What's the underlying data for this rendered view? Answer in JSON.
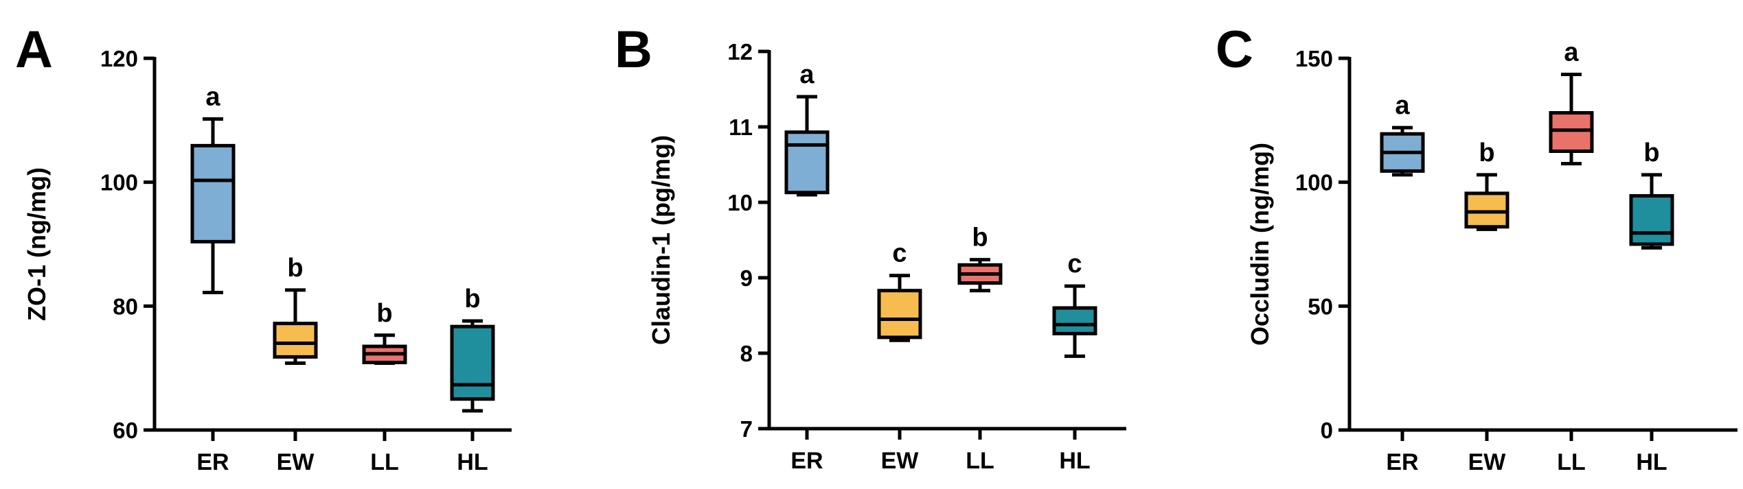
{
  "chart_data": [
    {
      "type": "box",
      "panel_label": "A",
      "ylabel": "ZO-1 (ng/mg)",
      "ylim": [
        60,
        120
      ],
      "yticks": [
        60,
        80,
        100,
        120
      ],
      "categories": [
        "ER",
        "EW",
        "LL",
        "HL"
      ],
      "boxes": [
        {
          "min": 82.2,
          "q1": 90.4,
          "median": 100.3,
          "q3": 105.9,
          "max": 110.2
        },
        {
          "min": 70.8,
          "q1": 71.8,
          "median": 74.0,
          "q3": 77.2,
          "max": 82.6
        },
        {
          "min": 70.8,
          "q1": 70.9,
          "median": 72.3,
          "q3": 73.5,
          "max": 75.3
        },
        {
          "min": 63.1,
          "q1": 65.0,
          "median": 67.3,
          "q3": 76.7,
          "max": 77.6
        }
      ],
      "significance": [
        "a",
        "b",
        "b",
        "b"
      ]
    },
    {
      "type": "box",
      "panel_label": "B",
      "ylabel": "Claudin-1 (pg/mg)",
      "ylim": [
        7,
        12
      ],
      "yticks": [
        7,
        8,
        9,
        10,
        11,
        12
      ],
      "categories": [
        "ER",
        "EW",
        "LL",
        "HL"
      ],
      "boxes": [
        {
          "min": 10.1,
          "q1": 10.13,
          "median": 10.76,
          "q3": 10.93,
          "max": 11.4
        },
        {
          "min": 8.17,
          "q1": 8.21,
          "median": 8.45,
          "q3": 8.83,
          "max": 9.03
        },
        {
          "min": 8.83,
          "q1": 8.93,
          "median": 9.05,
          "q3": 9.17,
          "max": 9.24
        },
        {
          "min": 7.96,
          "q1": 8.26,
          "median": 8.38,
          "q3": 8.6,
          "max": 8.89
        }
      ],
      "significance": [
        "a",
        "c",
        "b",
        "c"
      ]
    },
    {
      "type": "box",
      "panel_label": "C",
      "ylabel": "Occludin (ng/mg)",
      "ylim": [
        0,
        150
      ],
      "yticks": [
        0,
        50,
        100,
        150
      ],
      "categories": [
        "ER",
        "EW",
        "LL",
        "HL"
      ],
      "boxes": [
        {
          "min": 103,
          "q1": 104.5,
          "median": 112,
          "q3": 119.5,
          "max": 122
        },
        {
          "min": 81,
          "q1": 82,
          "median": 88,
          "q3": 95.5,
          "max": 103
        },
        {
          "min": 107.5,
          "q1": 112.5,
          "median": 121,
          "q3": 128,
          "max": 143.5
        },
        {
          "min": 73.5,
          "q1": 75,
          "median": 79.5,
          "q3": 94.5,
          "max": 103
        }
      ],
      "significance": [
        "a",
        "b",
        "a",
        "b"
      ]
    }
  ],
  "colors": {
    "ER": "#7eaed3",
    "EW": "#f6bc4f",
    "LL": "#e9726a",
    "HL": "#1f8f9e",
    "stroke": "#000000"
  }
}
